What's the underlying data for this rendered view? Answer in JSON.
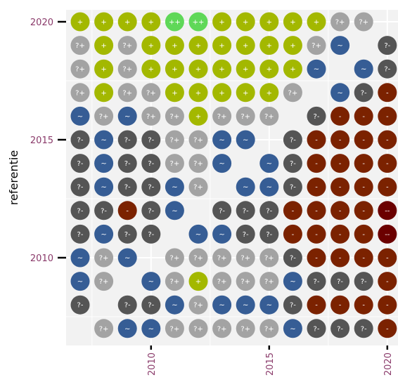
{
  "chart_data": {
    "type": "scatter",
    "title": "",
    "xlabel": "",
    "ylabel": "referentie",
    "x_ticks": [
      2010,
      2015,
      2020
    ],
    "y_ticks": [
      2010,
      2015,
      2020
    ],
    "xlim": [
      2006.5,
      2020.5
    ],
    "ylim": [
      2006.5,
      2020.5
    ],
    "grid": true,
    "legend": "none",
    "colors": {
      "--": "#6b0000",
      "-": "#7b2200",
      "?-": "#555555",
      "~": "#365d95",
      "?+": "#a3a3a3",
      "+": "#a3b800",
      "++": "#5fd858"
    },
    "x_categories": [
      2007,
      2008,
      2009,
      2010,
      2011,
      2012,
      2013,
      2014,
      2015,
      2016,
      2017,
      2018,
      2019,
      2020
    ],
    "rows": [
      {
        "y": 2020,
        "values": [
          "+",
          "+",
          "+",
          "+",
          "++",
          "++",
          "+",
          "+",
          "+",
          "+",
          "+",
          "?+",
          "?+",
          ""
        ]
      },
      {
        "y": 2019,
        "values": [
          "?+",
          "+",
          "?+",
          "+",
          "+",
          "+",
          "+",
          "+",
          "+",
          "+",
          "?+",
          "~",
          "",
          "?-"
        ]
      },
      {
        "y": 2018,
        "values": [
          "?+",
          "+",
          "?+",
          "+",
          "+",
          "+",
          "+",
          "+",
          "+",
          "+",
          "~",
          "",
          "~",
          "?-"
        ]
      },
      {
        "y": 2017,
        "values": [
          "?+",
          "+",
          "?+",
          "?+",
          "+",
          "+",
          "+",
          "+",
          "+",
          "?+",
          "",
          "~",
          "?-",
          "-"
        ]
      },
      {
        "y": 2016,
        "values": [
          "~",
          "?+",
          "~",
          "?+",
          "?+",
          "+",
          "?+",
          "?+",
          "?+",
          "",
          "?-",
          "-",
          "-",
          "-"
        ]
      },
      {
        "y": 2015,
        "values": [
          "?-",
          "~",
          "?-",
          "?-",
          "?+",
          "?+",
          "~",
          "~",
          "",
          "?-",
          "-",
          "-",
          "-",
          "-"
        ]
      },
      {
        "y": 2014,
        "values": [
          "?-",
          "~",
          "?-",
          "?-",
          "?+",
          "?+",
          "~",
          "",
          "~",
          "?-",
          "-",
          "-",
          "-",
          "-"
        ]
      },
      {
        "y": 2013,
        "values": [
          "?-",
          "~",
          "?-",
          "?-",
          "~",
          "?+",
          "",
          "~",
          "~",
          "?-",
          "-",
          "-",
          "-",
          "-"
        ]
      },
      {
        "y": 2012,
        "values": [
          "?-",
          "?-",
          "-",
          "?-",
          "~",
          "",
          "?-",
          "?-",
          "?-",
          "-",
          "-",
          "-",
          "-",
          "--"
        ]
      },
      {
        "y": 2011,
        "values": [
          "?-",
          "~",
          "?-",
          "?-",
          "",
          "~",
          "~",
          "?-",
          "?-",
          "-",
          "-",
          "-",
          "-",
          "--"
        ]
      },
      {
        "y": 2010,
        "values": [
          "~",
          "?+",
          "~",
          "",
          "?+",
          "?+",
          "?+",
          "?+",
          "?+",
          "?-",
          "-",
          "-",
          "-",
          "-"
        ]
      },
      {
        "y": 2009,
        "values": [
          "~",
          "?+",
          "",
          "~",
          "?+",
          "+",
          "?+",
          "?+",
          "?+",
          "~",
          "?-",
          "?-",
          "?-",
          "-"
        ]
      },
      {
        "y": 2008,
        "values": [
          "?-",
          "",
          "?-",
          "?-",
          "~",
          "?+",
          "~",
          "~",
          "~",
          "?-",
          "-",
          "-",
          "-",
          "-"
        ]
      },
      {
        "y": 2007,
        "values": [
          "",
          "?+",
          "~",
          "~",
          "?+",
          "?+",
          "?+",
          "?+",
          "?+",
          "~",
          "?-",
          "?-",
          "?-",
          "-"
        ]
      }
    ]
  }
}
